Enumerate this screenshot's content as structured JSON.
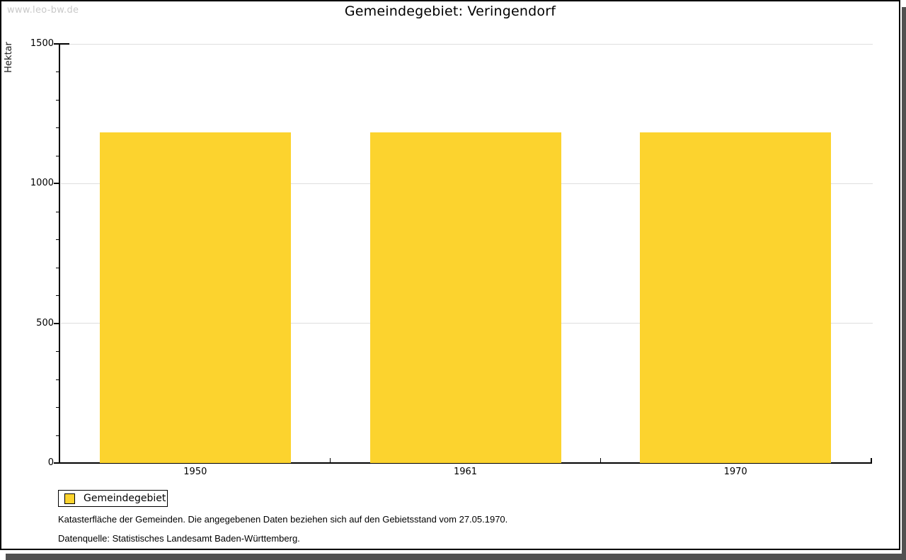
{
  "watermark": "www.leo-bw.de",
  "title": "Gemeindegebiet: Veringendorf",
  "chart_data": {
    "type": "bar",
    "title": "Gemeindegebiet: Veringendorf",
    "ylabel": "Hektar",
    "xlabel": "",
    "categories": [
      "1950",
      "1961",
      "1970"
    ],
    "series": [
      {
        "name": "Gemeindegebiet",
        "color": "#fcd32e",
        "values": [
          1183,
          1183,
          1183
        ]
      }
    ],
    "ylim": [
      0,
      1500
    ],
    "yticks": [
      0,
      500,
      1000,
      1500
    ],
    "minor_tick_step": 100,
    "grid": "horizontal",
    "legend_position": "bottom-left"
  },
  "legend": {
    "items": [
      {
        "label": "Gemeindegebiet",
        "color": "#fcd32e"
      }
    ]
  },
  "notes": {
    "line1": "Katasterfläche der Gemeinden. Die angegebenen Daten beziehen sich auf den Gebietsstand vom 27.05.1970.",
    "line2": "Datenquelle: Statistisches Landesamt Baden-Württemberg."
  },
  "colors": {
    "bar": "#fcd32e",
    "grid": "#dedede",
    "axis": "#000000",
    "watermark": "#c9c9c9",
    "frame_shadow": "#515151",
    "background": "#ffffff"
  }
}
